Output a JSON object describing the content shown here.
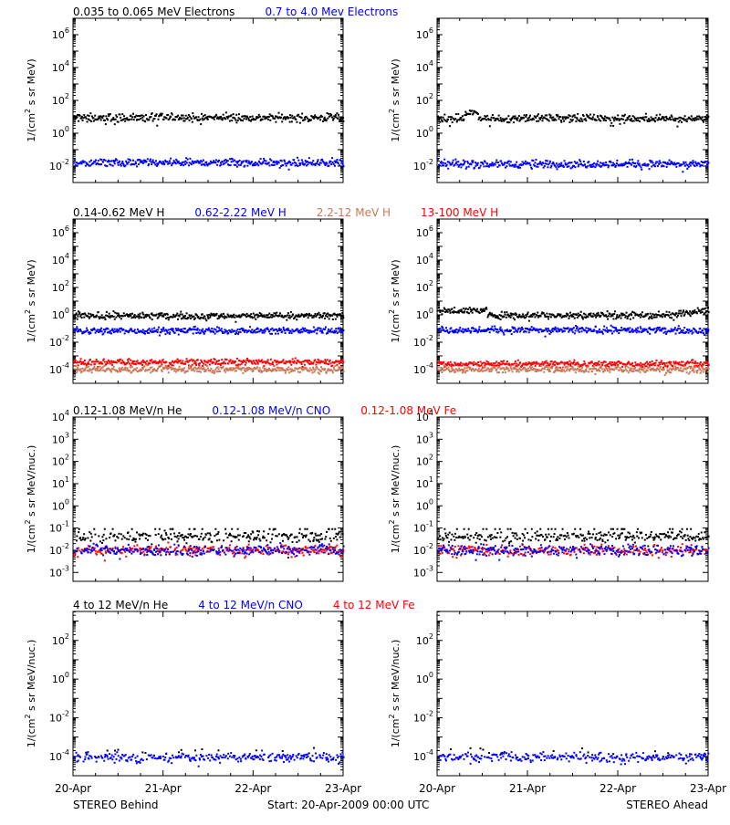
{
  "colors": {
    "black": "#000000",
    "blue": "#0000ff",
    "tan": "#cc7755",
    "red": "#ff0000"
  },
  "footer": {
    "left": "STEREO Behind",
    "center": "Start: 20-Apr-2009 00:00 UTC",
    "right": "STEREO Ahead"
  },
  "chart_data": [
    {
      "type": "scatter",
      "row": 1,
      "legend": [
        {
          "text": "0.035 to 0.065 MeV Electrons",
          "color": "black"
        },
        {
          "text": "0.7 to 4.0 Mev Electrons",
          "color": "blue"
        }
      ],
      "ylabel": "1/(cm^2 s sr MeV)",
      "yscale": "log",
      "ylim_exp": [
        -3,
        7
      ],
      "yticks_exp": [
        -2,
        0,
        2,
        4,
        6
      ],
      "xlim": [
        0,
        3
      ],
      "xtick_labels": [
        "20-Apr",
        "21-Apr",
        "22-Apr",
        "23-Apr"
      ],
      "panels": [
        {
          "name": "STEREO Behind",
          "series": [
            {
              "color": "black",
              "level": 10,
              "bump": null
            },
            {
              "color": "blue",
              "level": 0.018,
              "bump": null
            }
          ]
        },
        {
          "name": "STEREO Ahead",
          "series": [
            {
              "color": "black",
              "level": 9,
              "bump": [
                0.3,
                0.45,
                2.2
              ]
            },
            {
              "color": "blue",
              "level": 0.015,
              "bump": null
            }
          ]
        }
      ]
    },
    {
      "type": "scatter",
      "row": 2,
      "legend": [
        {
          "text": "0.14-0.62 MeV H",
          "color": "black"
        },
        {
          "text": "0.62-2.22 MeV H",
          "color": "blue"
        },
        {
          "text": "2.2-12 MeV H",
          "color": "tan"
        },
        {
          "text": "13-100 MeV H",
          "color": "red"
        }
      ],
      "ylabel": "1/(cm^2 s sr MeV)",
      "yscale": "log",
      "ylim_exp": [
        -5,
        7
      ],
      "yticks_exp": [
        -4,
        -2,
        0,
        2,
        4,
        6
      ],
      "xlim": [
        0,
        3
      ],
      "xtick_labels": [
        "20-Apr",
        "21-Apr",
        "22-Apr",
        "23-Apr"
      ],
      "panels": [
        {
          "name": "STEREO Behind",
          "series": [
            {
              "color": "black",
              "level": 1.0,
              "bump": null
            },
            {
              "color": "blue",
              "level": 0.08,
              "bump": null
            },
            {
              "color": "red",
              "level": 0.0004,
              "bump": null
            },
            {
              "color": "tan",
              "level": 0.00012,
              "bump": null
            }
          ]
        },
        {
          "name": "STEREO Ahead",
          "series": [
            {
              "color": "black",
              "level": 1.1,
              "bump": [
                0.0,
                0.55,
                2.2
              ]
            },
            {
              "color": "blue",
              "level": 0.09,
              "bump": null
            },
            {
              "color": "red",
              "level": 0.0003,
              "bump": null
            },
            {
              "color": "tan",
              "level": 0.00012,
              "bump": null
            }
          ]
        }
      ]
    },
    {
      "type": "scatter",
      "row": 3,
      "legend": [
        {
          "text": "0.12-1.08 MeV/n He",
          "color": "black"
        },
        {
          "text": "0.12-1.08 MeV/n CNO",
          "color": "blue"
        },
        {
          "text": "0.12-1.08 MeV Fe",
          "color": "red"
        }
      ],
      "ylabel": "1/(cm^2 s sr MeV/nuc.)",
      "yscale": "log",
      "ylim_exp": [
        -3.4,
        4
      ],
      "yticks_exp": [
        -3,
        -2,
        -1,
        0,
        1,
        2,
        3,
        4
      ],
      "xlim": [
        0,
        3
      ],
      "xtick_labels": [
        "20-Apr",
        "21-Apr",
        "22-Apr",
        "23-Apr"
      ],
      "panels": [
        {
          "name": "STEREO Behind",
          "series": [
            {
              "color": "black",
              "level": 0.045,
              "bump": null
            },
            {
              "color": "red",
              "level": 0.011,
              "bump": null
            },
            {
              "color": "blue",
              "level": 0.011,
              "bump": null
            }
          ]
        },
        {
          "name": "STEREO Ahead",
          "series": [
            {
              "color": "black",
              "level": 0.045,
              "bump": null
            },
            {
              "color": "red",
              "level": 0.011,
              "bump": null
            },
            {
              "color": "blue",
              "level": 0.011,
              "bump": null
            }
          ]
        }
      ]
    },
    {
      "type": "scatter",
      "row": 4,
      "legend": [
        {
          "text": "4 to 12 MeV/n He",
          "color": "black"
        },
        {
          "text": "4 to 12 MeV/n CNO",
          "color": "blue"
        },
        {
          "text": "4 to 12 MeV Fe",
          "color": "red"
        }
      ],
      "ylabel": "1/(cm^2 s sr MeV/nuc.)",
      "yscale": "log",
      "ylim_exp": [
        -5,
        3.5
      ],
      "yticks_exp": [
        -4,
        -2,
        0,
        2
      ],
      "xlim": [
        0,
        3
      ],
      "xtick_labels": [
        "20-Apr",
        "21-Apr",
        "22-Apr",
        "23-Apr"
      ],
      "panels": [
        {
          "name": "STEREO Behind",
          "series": [
            {
              "color": "blue",
              "level": 0.0001,
              "bump": null
            },
            {
              "color": "black",
              "level": 0.0002,
              "bump": null
            }
          ]
        },
        {
          "name": "STEREO Ahead",
          "series": [
            {
              "color": "blue",
              "level": 0.0001,
              "bump": null
            },
            {
              "color": "black",
              "level": 0.0002,
              "bump": null
            }
          ]
        }
      ]
    }
  ]
}
